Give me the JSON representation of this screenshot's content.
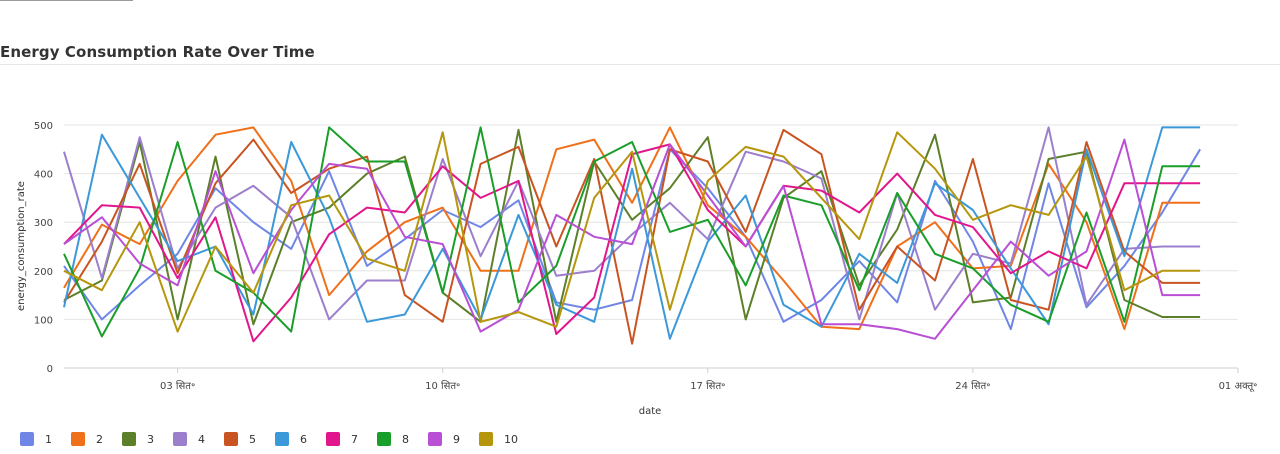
{
  "header": {
    "title": "Energy Consumption Rate Over Time"
  },
  "chart_data": {
    "type": "line",
    "title": "Energy Consumption Rate Over Time",
    "xlabel": "date",
    "ylabel": "energy_consumption_rate",
    "ylim": [
      0,
      500
    ],
    "yticks": [
      0,
      100,
      200,
      300,
      400,
      500
    ],
    "xlim": [
      "2024-08-31",
      "2024-10-01"
    ],
    "xticks": [
      {
        "date": "2024-09-03",
        "label": "03 सित॰"
      },
      {
        "date": "2024-09-10",
        "label": "10 सित॰"
      },
      {
        "date": "2024-09-17",
        "label": "17 सित॰"
      },
      {
        "date": "2024-09-24",
        "label": "24 सित॰"
      },
      {
        "date": "2024-10-01",
        "label": "01 अक्तू॰"
      }
    ],
    "grid": true,
    "legend_position": "bottom-left",
    "x": [
      "2024-08-31",
      "2024-09-01",
      "2024-09-02",
      "2024-09-03",
      "2024-09-04",
      "2024-09-05",
      "2024-09-06",
      "2024-09-07",
      "2024-09-08",
      "2024-09-09",
      "2024-09-10",
      "2024-09-11",
      "2024-09-12",
      "2024-09-13",
      "2024-09-14",
      "2024-09-15",
      "2024-09-16",
      "2024-09-17",
      "2024-09-18",
      "2024-09-19",
      "2024-09-20",
      "2024-09-21",
      "2024-09-22",
      "2024-09-23",
      "2024-09-24",
      "2024-09-25",
      "2024-09-26",
      "2024-09-27",
      "2024-09-28",
      "2024-09-29",
      "2024-09-30"
    ],
    "series": [
      {
        "name": "1",
        "color": "#6f86e6",
        "values": [
          210,
          100,
          170,
          235,
          370,
          300,
          245,
          405,
          210,
          265,
          325,
          290,
          345,
          135,
          120,
          140,
          450,
          370,
          270,
          95,
          140,
          220,
          135,
          385,
          260,
          80,
          380,
          125,
          210,
          320,
          450
        ]
      },
      {
        "name": "2",
        "color": "#f0701a",
        "values": [
          165,
          295,
          255,
          385,
          480,
          495,
          385,
          150,
          240,
          300,
          330,
          200,
          200,
          450,
          470,
          340,
          495,
          335,
          270,
          180,
          85,
          80,
          250,
          300,
          205,
          210,
          420,
          300,
          80,
          340,
          340
        ]
      },
      {
        "name": "3",
        "color": "#5c7f2a",
        "values": [
          140,
          180,
          465,
          100,
          435,
          90,
          300,
          330,
          400,
          435,
          155,
          95,
          490,
          95,
          425,
          305,
          370,
          475,
          100,
          350,
          405,
          170,
          285,
          480,
          135,
          145,
          430,
          445,
          140,
          105,
          105
        ]
      },
      {
        "name": "4",
        "color": "#9b7fcd",
        "values": [
          445,
          185,
          475,
          205,
          330,
          375,
          310,
          100,
          180,
          180,
          430,
          230,
          385,
          190,
          200,
          275,
          340,
          265,
          445,
          425,
          390,
          100,
          360,
          120,
          235,
          215,
          495,
          130,
          245,
          250,
          250
        ]
      },
      {
        "name": "5",
        "color": "#c95421",
        "values": [
          135,
          260,
          420,
          195,
          380,
          470,
          360,
          410,
          435,
          150,
          95,
          420,
          455,
          250,
          430,
          50,
          450,
          425,
          280,
          490,
          440,
          120,
          250,
          180,
          430,
          140,
          120,
          465,
          240,
          175,
          175
        ]
      },
      {
        "name": "6",
        "color": "#3b98d9",
        "values": [
          125,
          480,
          350,
          220,
          250,
          110,
          465,
          310,
          95,
          110,
          245,
          100,
          315,
          130,
          95,
          410,
          60,
          260,
          355,
          130,
          85,
          235,
          175,
          380,
          325,
          205,
          90,
          450,
          230,
          495,
          495
        ]
      },
      {
        "name": "7",
        "color": "#e2168c",
        "values": [
          255,
          335,
          330,
          185,
          310,
          55,
          145,
          275,
          330,
          320,
          415,
          350,
          385,
          70,
          145,
          440,
          460,
          325,
          250,
          375,
          365,
          320,
          400,
          315,
          290,
          195,
          240,
          205,
          380,
          380,
          380
        ]
      },
      {
        "name": "8",
        "color": "#1a9e2a",
        "values": [
          235,
          65,
          205,
          465,
          200,
          155,
          75,
          495,
          425,
          425,
          155,
          495,
          135,
          210,
          425,
          465,
          280,
          305,
          170,
          355,
          335,
          160,
          360,
          235,
          205,
          130,
          95,
          320,
          95,
          415,
          415
        ]
      },
      {
        "name": "9",
        "color": "#b84fd4",
        "values": [
          255,
          310,
          215,
          170,
          405,
          195,
          325,
          420,
          410,
          270,
          255,
          75,
          120,
          315,
          270,
          255,
          460,
          355,
          250,
          375,
          90,
          90,
          80,
          60,
          160,
          260,
          190,
          240,
          470,
          150,
          150
        ]
      },
      {
        "name": "10",
        "color": "#b5960d",
        "values": [
          200,
          160,
          300,
          75,
          250,
          155,
          335,
          355,
          225,
          200,
          485,
          95,
          115,
          85,
          350,
          445,
          120,
          385,
          455,
          435,
          350,
          265,
          485,
          410,
          305,
          335,
          315,
          435,
          160,
          200,
          200
        ]
      }
    ]
  }
}
